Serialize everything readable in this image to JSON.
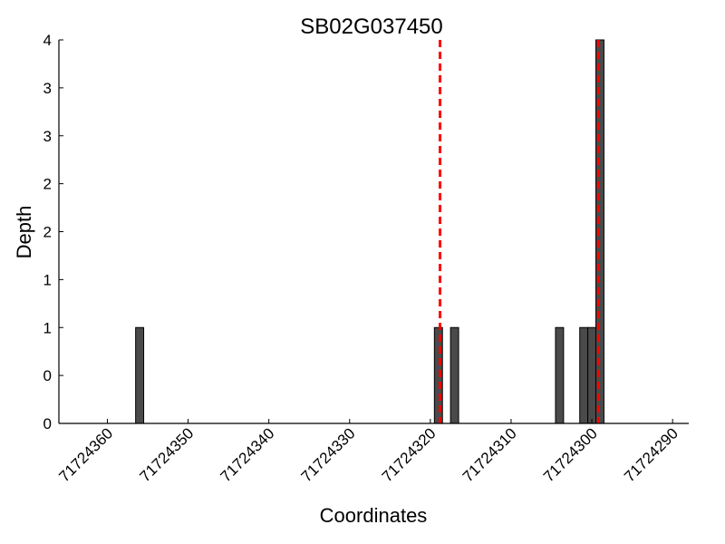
{
  "chart_data": {
    "type": "bar",
    "title": "SB02G037450",
    "xlabel": "Coordinates",
    "ylabel": "Depth",
    "x_axis_reversed": true,
    "xlim": [
      71724366,
      71724288
    ],
    "ylim": [
      0,
      4
    ],
    "x_ticks": [
      71724360,
      71724350,
      71724340,
      71724330,
      71724320,
      71724310,
      71724300,
      71724290
    ],
    "x_tick_labels": [
      "71724360",
      "71724350",
      "71724340",
      "71724330",
      "71724320",
      "71724310",
      "71724300",
      "71724290"
    ],
    "y_ticks": [
      0,
      0.5,
      1,
      1.5,
      2,
      2.5,
      3,
      3.5,
      4
    ],
    "y_tick_labels": [
      "0",
      "0",
      "1",
      "1",
      "2",
      "2",
      "3",
      "3",
      "4"
    ],
    "bar_width": 1,
    "bars": [
      {
        "x": 71724356,
        "value": 1
      },
      {
        "x": 71724319,
        "value": 1
      },
      {
        "x": 71724317,
        "value": 1
      },
      {
        "x": 71724304,
        "value": 1
      },
      {
        "x": 71724301,
        "value": 1
      },
      {
        "x": 71724300,
        "value": 1
      },
      {
        "x": 71724299,
        "value": 4
      }
    ],
    "markers": [
      71724318.8,
      71724299.2
    ],
    "grid": false,
    "colors": {
      "bar_fill": "#4a4a4a",
      "bar_edge": "#000000",
      "marker": "#ff0000"
    }
  }
}
